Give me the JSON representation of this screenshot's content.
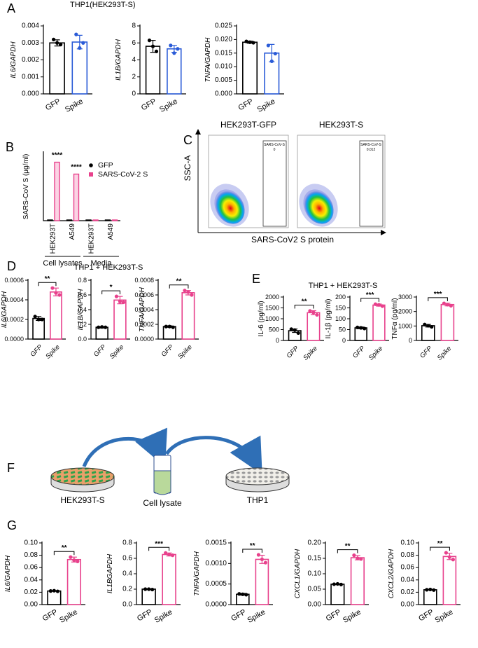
{
  "panel_letters": [
    "A",
    "B",
    "C",
    "D",
    "E",
    "F",
    "G"
  ],
  "panel_titles": [
    "THP1(HEK293T-S)",
    "THP1 + HEK293T-S",
    "THP1 + HEK293T-S"
  ],
  "chart_data": [
    {
      "type": "bar",
      "ylabel": "IL6/GAPDH",
      "categories": [
        "GFP",
        "Spike"
      ],
      "values": [
        0.003,
        0.00305
      ],
      "errors": [
        0.00018,
        0.0004
      ],
      "points": [
        [
          0.0032,
          0.0029,
          0.003
        ],
        [
          0.0035,
          0.003,
          0.0027
        ]
      ],
      "colors": [
        "#000000",
        "#2a5bd7"
      ],
      "ylim": [
        0,
        0.004
      ],
      "yticks": [
        {
          "value": 0,
          "label": "0.000"
        },
        0.001,
        0.002,
        0.003,
        0.004
      ]
    },
    {
      "type": "bar",
      "ylabel": "IL1B/GAPDH",
      "categories": [
        "GFP",
        "Spike"
      ],
      "values": [
        5.6,
        5.3
      ],
      "errors": [
        0.7,
        0.4
      ],
      "points": [
        [
          6.3,
          5.0,
          5.6
        ],
        [
          5.7,
          5.3,
          4.8
        ]
      ],
      "colors": [
        "#000000",
        "#2a5bd7"
      ],
      "ylim": [
        0,
        8
      ],
      "yticks": [
        0,
        2,
        4,
        6,
        8
      ]
    },
    {
      "type": "bar",
      "ylabel": "TNFA/GAPDH",
      "categories": [
        "GFP",
        "Spike"
      ],
      "values": [
        0.019,
        0.015
      ],
      "errors": [
        0.0004,
        0.0032
      ],
      "points": [
        [
          0.0193,
          0.0188,
          0.019
        ],
        [
          0.0178,
          0.0148,
          0.012
        ]
      ],
      "colors": [
        "#000000",
        "#2a5bd7"
      ],
      "ylim": [
        0,
        0.025
      ],
      "yticks": [
        {
          "value": 0,
          "label": "0.000"
        },
        0.005,
        {
          "value": 0.01,
          "label": "0.010"
        },
        0.015,
        {
          "value": 0.02,
          "label": "0.020"
        },
        0.025
      ]
    },
    {
      "type": "grouped_bar",
      "ylabel": "SARS-CoV S (μg/ml)",
      "categories": [
        "HEK293T",
        "A549",
        "HEK293T",
        "A549"
      ],
      "groups": [
        "Cell lysates",
        "Media"
      ],
      "series": [
        {
          "name": "GFP",
          "color": "#000000",
          "values": [
            0,
            0,
            0,
            0
          ]
        },
        {
          "name": "SARS-CoV-2 S",
          "color": "#e8418c",
          "values": [
            17,
            13.5,
            0,
            0
          ]
        }
      ],
      "significance": [
        "****",
        "****"
      ],
      "ylim": [
        0,
        20
      ]
    },
    {
      "type": "bar",
      "ylabel": "IL6/GAPDH",
      "categories": [
        "GFP",
        "Spike"
      ],
      "values": [
        0.00021,
        0.00048
      ],
      "errors": [
        2e-05,
        4e-05
      ],
      "points": [
        [
          0.00023,
          0.0002,
          0.0002
        ],
        [
          0.00052,
          0.00045,
          0.00047
        ]
      ],
      "colors": [
        "#000000",
        "#e8418c"
      ],
      "significance": "**",
      "ylim": [
        0,
        0.0006
      ],
      "yticks": [
        {
          "value": 0,
          "label": "0.0000"
        },
        0.0002,
        0.0004,
        0.0006
      ]
    },
    {
      "type": "bar",
      "ylabel": "IL1B/GAPDH",
      "categories": [
        "GFP",
        "Spike"
      ],
      "values": [
        0.16,
        0.53
      ],
      "errors": [
        0.01,
        0.05
      ],
      "points": [
        [
          0.16,
          0.16,
          0.165
        ],
        [
          0.58,
          0.5,
          0.51
        ]
      ],
      "colors": [
        "#000000",
        "#e8418c"
      ],
      "significance": "*",
      "ylim": [
        0,
        0.8
      ],
      "yticks": [
        {
          "value": 0,
          "label": "0.0"
        },
        0.2,
        0.4,
        0.6,
        0.8
      ]
    },
    {
      "type": "bar",
      "ylabel": "TNFA/GAPDH",
      "categories": [
        "GFP",
        "Spike"
      ],
      "values": [
        0.00017,
        0.00063
      ],
      "errors": [
        1e-05,
        3e-05
      ],
      "points": [
        [
          0.00017,
          0.00016,
          0.00017
        ],
        [
          0.00066,
          0.0006,
          0.00064
        ]
      ],
      "colors": [
        "#000000",
        "#e8418c"
      ],
      "significance": "**",
      "ylim": [
        0,
        0.0008
      ],
      "yticks": [
        {
          "value": 0,
          "label": "0.0000"
        },
        0.0002,
        0.0004,
        0.0006,
        0.0008
      ]
    },
    {
      "type": "bar",
      "ylabel": "IL-6 (pg/ml)",
      "categories": [
        "GFP",
        "Spike"
      ],
      "values": [
        450,
        1280
      ],
      "errors": [
        80,
        90
      ],
      "points": [
        [
          520,
          340,
          480
        ],
        [
          1360,
          1180,
          1290
        ]
      ],
      "colors": [
        "#000000",
        "#e8418c"
      ],
      "significance": "**",
      "ylim": [
        0,
        2000
      ],
      "yticks": [
        0,
        500,
        1000,
        1500,
        2000
      ]
    },
    {
      "type": "bar",
      "ylabel": "IL-1β (pg/ml)",
      "categories": [
        "GFP",
        "Spike"
      ],
      "values": [
        58,
        163
      ],
      "errors": [
        4,
        5
      ],
      "points": [
        [
          60,
          55,
          58
        ],
        [
          167,
          158,
          164
        ]
      ],
      "colors": [
        "#000000",
        "#e8418c"
      ],
      "significance": "***",
      "ylim": [
        0,
        200
      ],
      "yticks": [
        0,
        50,
        100,
        150,
        200
      ]
    },
    {
      "type": "bar",
      "ylabel": "TNFα (pg/ml)",
      "categories": [
        "GFP",
        "Spike"
      ],
      "values": [
        1020,
        2480
      ],
      "errors": [
        90,
        90
      ],
      "points": [
        [
          1100,
          940,
          1020
        ],
        [
          2560,
          2400,
          2470
        ]
      ],
      "colors": [
        "#000000",
        "#e8418c"
      ],
      "significance": "***",
      "ylim": [
        0,
        3000
      ],
      "yticks": [
        0,
        1000,
        2000,
        3000
      ]
    },
    {
      "type": "bar",
      "ylabel": "IL6/GAPDH",
      "categories": [
        "GFP",
        "Spike"
      ],
      "values": [
        0.022,
        0.073
      ],
      "errors": [
        0.0005,
        0.004
      ],
      "points": [
        [
          0.022,
          0.0215,
          0.0225
        ],
        [
          0.077,
          0.07,
          0.072
        ]
      ],
      "colors": [
        "#000000",
        "#e8418c"
      ],
      "significance": "**",
      "ylim": [
        0,
        0.1
      ],
      "yticks": [
        {
          "value": 0,
          "label": "0.00"
        },
        0.02,
        0.04,
        0.06,
        0.08,
        {
          "value": 0.1,
          "label": "0.10"
        }
      ]
    },
    {
      "type": "bar",
      "ylabel": "IL1BGAPDH",
      "categories": [
        "GFP",
        "Spike"
      ],
      "values": [
        0.2,
        0.65
      ],
      "errors": [
        0.005,
        0.02
      ],
      "points": [
        [
          0.2,
          0.195,
          0.2
        ],
        [
          0.67,
          0.64,
          0.65
        ]
      ],
      "colors": [
        "#000000",
        "#e8418c"
      ],
      "significance": "***",
      "ylim": [
        0,
        0.8
      ],
      "yticks": [
        {
          "value": 0,
          "label": "0.0"
        },
        0.2,
        0.4,
        0.6,
        0.8
      ]
    },
    {
      "type": "bar",
      "ylabel": "TNFA/GAPDH",
      "categories": [
        "GFP",
        "Spike"
      ],
      "values": [
        0.00025,
        0.0011
      ],
      "errors": [
        2e-05,
        0.0001
      ],
      "points": [
        [
          0.00026,
          0.00024,
          0.00025
        ],
        [
          0.00121,
          0.00102,
          0.0011
        ]
      ],
      "colors": [
        "#000000",
        "#e8418c"
      ],
      "significance": "**",
      "ylim": [
        0,
        0.0015
      ],
      "yticks": [
        {
          "value": 0,
          "label": "0.0000"
        },
        0.0005,
        {
          "value": 0.001,
          "label": "0.0010"
        },
        0.0015
      ]
    },
    {
      "type": "bar",
      "ylabel": "CXCL1/GAPDH",
      "categories": [
        "GFP",
        "Spike"
      ],
      "values": [
        0.066,
        0.152
      ],
      "errors": [
        0.001,
        0.007
      ],
      "points": [
        [
          0.066,
          0.065,
          0.067
        ],
        [
          0.16,
          0.148,
          0.15
        ]
      ],
      "colors": [
        "#000000",
        "#e8418c"
      ],
      "significance": "**",
      "ylim": [
        0,
        0.2
      ],
      "yticks": [
        {
          "value": 0,
          "label": "0.00"
        },
        0.05,
        {
          "value": 0.1,
          "label": "0.10"
        },
        0.15,
        {
          "value": 0.2,
          "label": "0.20"
        }
      ]
    },
    {
      "type": "bar",
      "ylabel": "CXCL2/GAPDH",
      "categories": [
        "GFP",
        "Spike"
      ],
      "values": [
        0.024,
        0.078
      ],
      "errors": [
        0.0005,
        0.005
      ],
      "points": [
        [
          0.024,
          0.0235,
          0.0245
        ],
        [
          0.084,
          0.073,
          0.077
        ]
      ],
      "colors": [
        "#000000",
        "#e8418c"
      ],
      "significance": "**",
      "ylim": [
        0,
        0.1
      ],
      "yticks": [
        {
          "value": 0,
          "label": "0.00"
        },
        0.02,
        0.04,
        0.06,
        0.08,
        {
          "value": 0.1,
          "label": "0.10"
        }
      ]
    }
  ],
  "flow": {
    "panels": [
      {
        "title": "HEK293T-GFP",
        "gate_label": "SARS-CoV-S",
        "gate_value": "0"
      },
      {
        "title": "HEK293T-S",
        "gate_label": "SARS-CoV-S",
        "gate_value": "0.012"
      }
    ],
    "ylabel": "SSC-A",
    "xlabel": "SARS-CoV2 S protein"
  },
  "schematic": {
    "labels": [
      "HEK293T-S",
      "Cell lysate",
      "THP1"
    ]
  }
}
